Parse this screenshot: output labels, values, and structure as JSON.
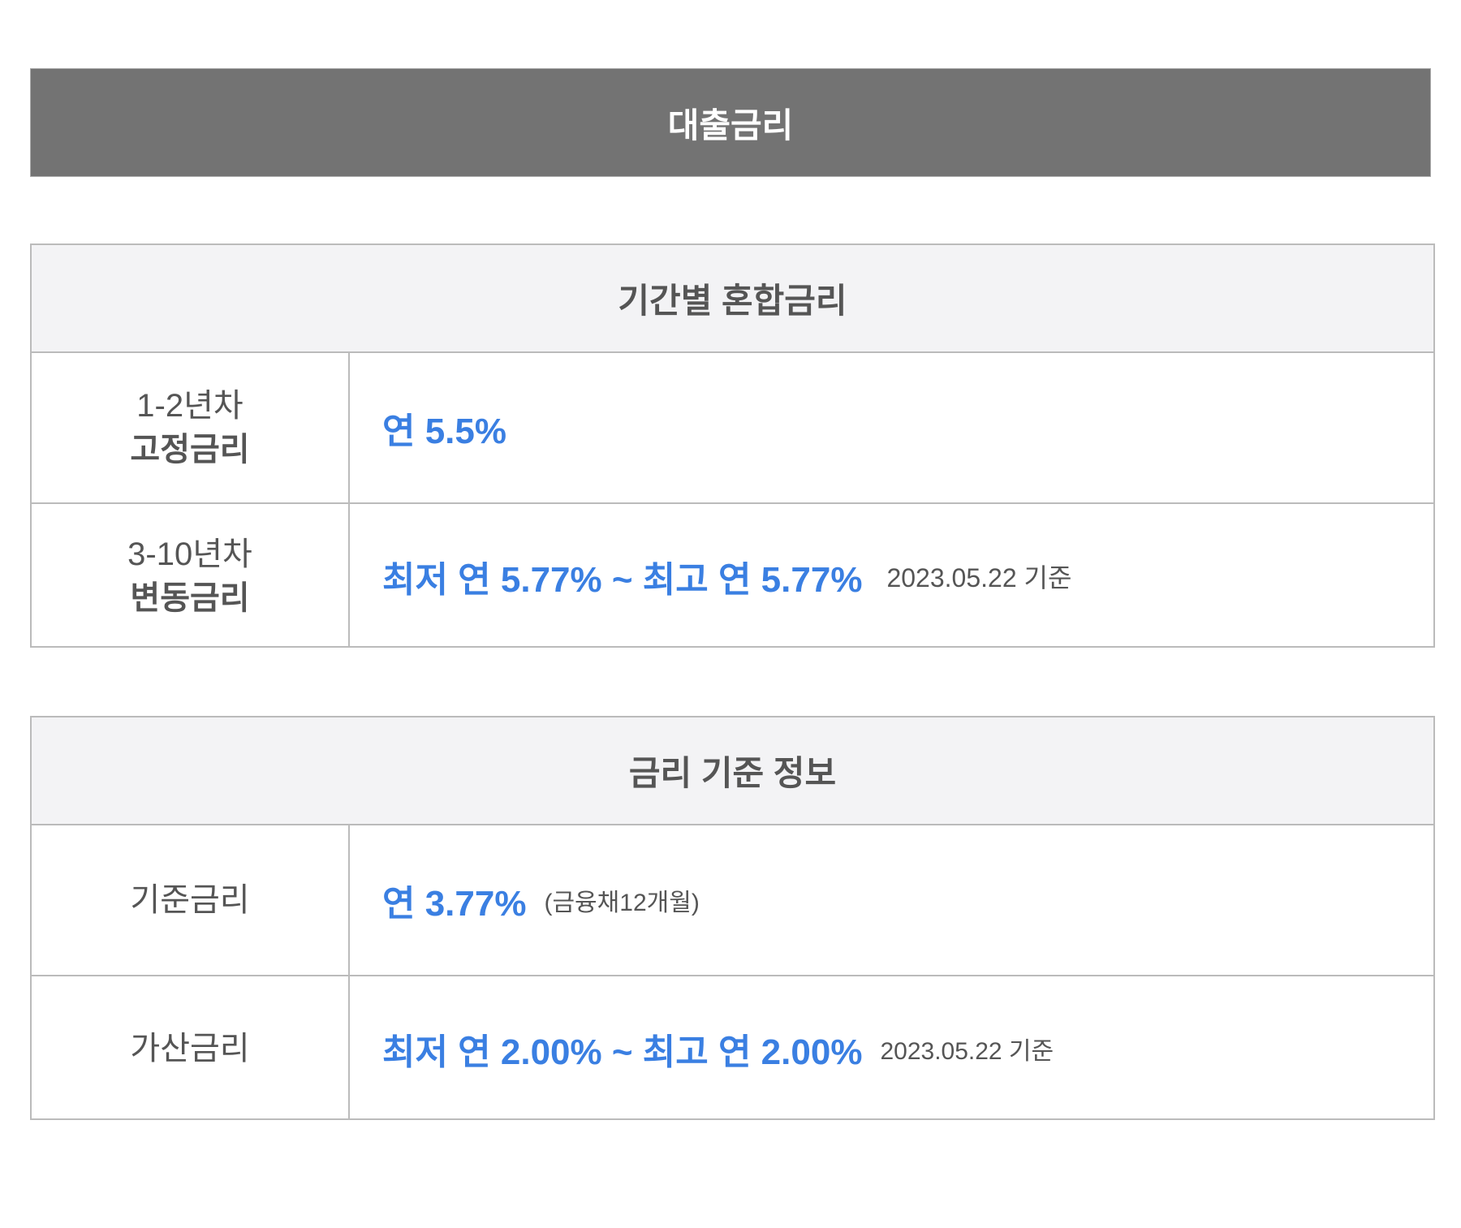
{
  "banner": {
    "title": "대출금리"
  },
  "mixed_rate": {
    "title": "기간별 혼합금리",
    "rows": [
      {
        "period": "1-2년차",
        "type": "고정금리",
        "value": "연 5.5%",
        "note": ""
      },
      {
        "period": "3-10년차",
        "type": "변동금리",
        "value": "최저 연 5.77% ~ 최고 연 5.77%",
        "note": "2023.05.22 기준"
      }
    ]
  },
  "rate_basis": {
    "title": "금리 기준 정보",
    "rows": [
      {
        "label": "기준금리",
        "value": "연 3.77%",
        "note": "(금융채12개월)"
      },
      {
        "label": "가산금리",
        "value": "최저 연 2.00% ~ 최고 연 2.00%",
        "note": "2023.05.22 기준"
      }
    ]
  },
  "colors": {
    "accent": "#3a7fe2",
    "banner": "#737373",
    "header_bg": "#f3f3f5"
  }
}
